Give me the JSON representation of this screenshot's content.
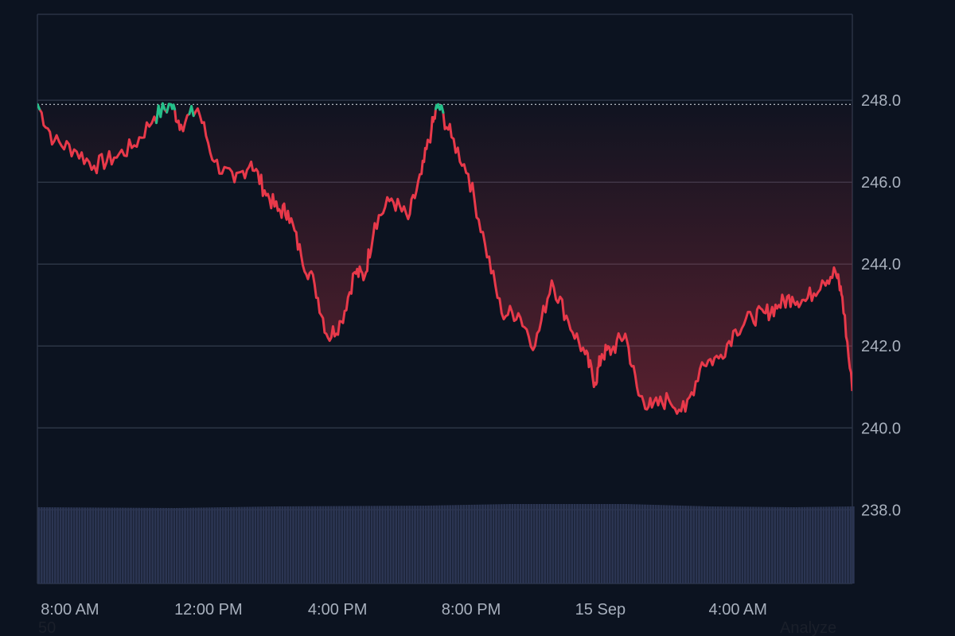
{
  "chart_data": {
    "type": "line",
    "title": "",
    "xlabel": "",
    "ylabel": "",
    "ylim": [
      236.2,
      250.1
    ],
    "y_ticks": [
      "248.0",
      "246.0",
      "244.0",
      "242.0",
      "240.0",
      "238.0"
    ],
    "y_tick_values": [
      248,
      246,
      244,
      242,
      240,
      238
    ],
    "x_tick_labels": [
      "8:00 AM",
      "12:00 PM",
      "4:00 PM",
      "8:00 PM",
      "15 Sep",
      "4:00 AM"
    ],
    "x_tick_hours": [
      8,
      12,
      16,
      20,
      24,
      28
    ],
    "x_range_hours": [
      7.9,
      32.3
    ],
    "reference_line": 247.9,
    "grid": true,
    "series": [
      {
        "color_below": "#e8394a",
        "color_above": "#22c08a",
        "x": [
          7.9,
          8.4,
          9.0,
          9.6,
          10.2,
          10.8,
          11.4,
          11.9,
          12.2,
          12.7,
          13.2,
          13.8,
          14.3,
          14.7,
          15.1,
          15.4,
          15.8,
          16.2,
          16.6,
          17.0,
          17.4,
          17.7,
          18.0,
          18.5,
          19.0,
          19.4,
          19.7,
          19.9,
          20.3,
          20.8,
          21.3,
          21.8,
          22.3,
          22.8,
          23.3,
          23.8,
          24.3,
          24.6,
          24.8,
          25.1,
          25.5,
          25.9,
          26.3,
          26.8,
          27.3,
          27.8,
          28.3,
          28.8,
          29.3,
          29.7,
          30.1,
          30.5,
          30.9,
          31.4,
          31.8,
          32.0,
          32.3
        ],
        "y": [
          247.9,
          247.0,
          246.8,
          246.4,
          246.6,
          246.9,
          247.6,
          247.9,
          247.4,
          247.8,
          246.5,
          246.0,
          246.5,
          245.8,
          245.3,
          245.3,
          244.2,
          243.5,
          242.2,
          242.6,
          243.8,
          243.7,
          245.0,
          245.6,
          245.1,
          246.2,
          247.3,
          247.9,
          247.1,
          246.2,
          244.5,
          242.8,
          242.8,
          242.0,
          243.6,
          242.6,
          241.8,
          241.1,
          241.8,
          241.9,
          242.3,
          240.8,
          240.5,
          240.7,
          240.4,
          241.6,
          241.7,
          242.4,
          242.7,
          242.8,
          243.0,
          243.2,
          243.1,
          243.6,
          243.8,
          243.2,
          240.9
        ]
      }
    ],
    "volume": {
      "color": "#2b3552",
      "x": [
        7.9,
        12.0,
        15.0,
        19.5,
        22.0,
        25.5,
        28.0,
        30.5,
        32.3
      ],
      "level": [
        0.96,
        0.95,
        0.97,
        0.98,
        1.0,
        1.0,
        0.97,
        0.96,
        0.97
      ]
    }
  },
  "footer": {
    "left_text": "50",
    "right_text": "Analyze"
  }
}
